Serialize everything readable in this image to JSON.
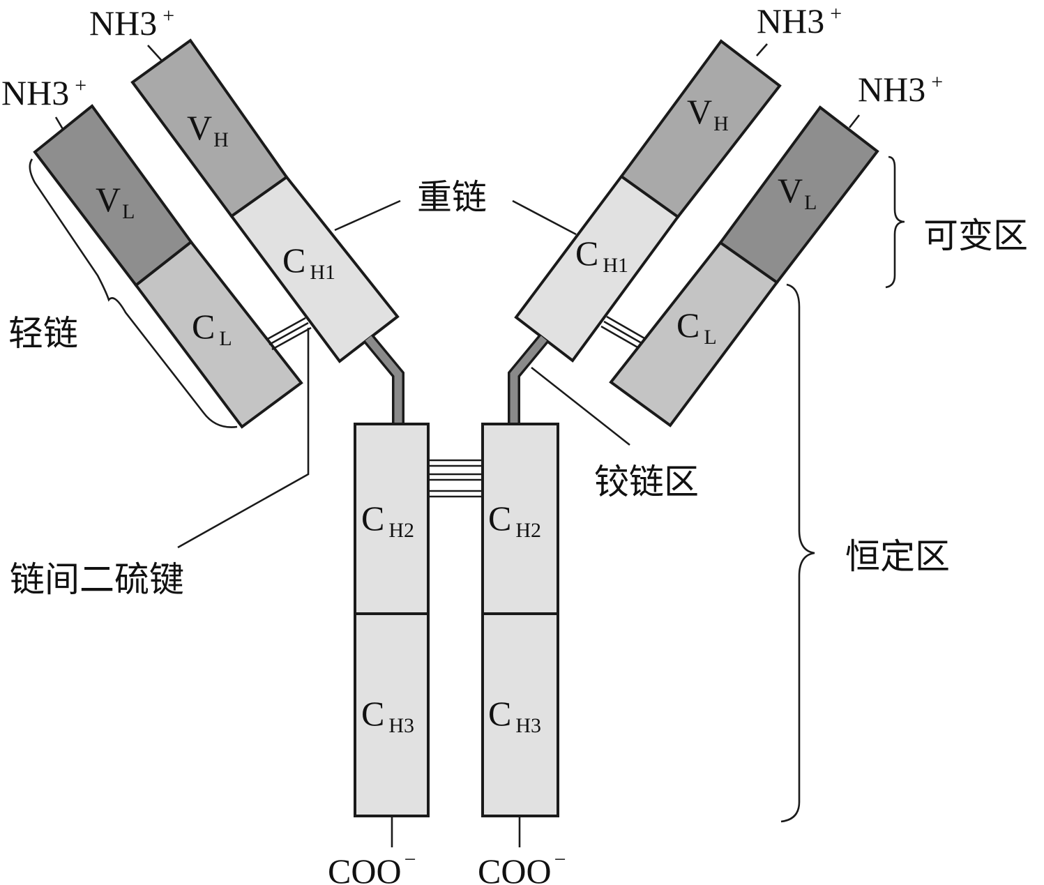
{
  "colors": {
    "v_light": "#a9a9a9",
    "v_heavy_dark": "#8e8e8e",
    "c_light": "#c4c4c4",
    "c_heavy": "#e1e1e1",
    "line": "#1a1a1a",
    "hinge": "#8a8a8a"
  },
  "termini": {
    "nh3": "NH3",
    "nh3_charge": "+",
    "coo": "COO",
    "coo_charge": "−"
  },
  "domains": {
    "v": "V",
    "c": "C",
    "h": "H",
    "l": "L",
    "h1": "H1",
    "h2": "H2",
    "h3": "H3"
  },
  "labels": {
    "heavy_chain": "重链",
    "light_chain": "轻链",
    "variable_region": "可变区",
    "constant_region": "恒定区",
    "hinge_region": "铰链区",
    "interchain_disulfide": "链间二硫键"
  }
}
